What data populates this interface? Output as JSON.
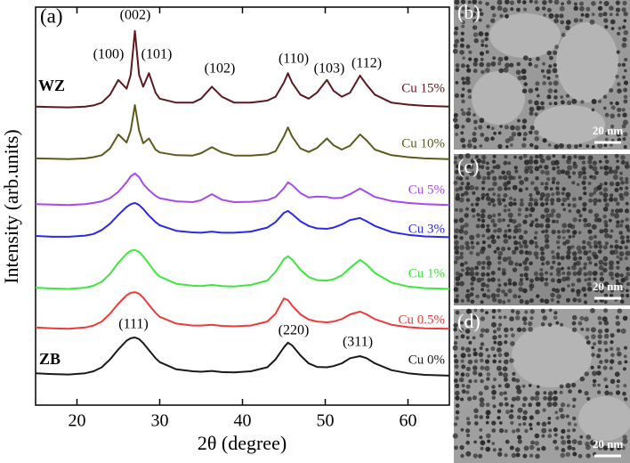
{
  "chart_data": {
    "type": "line",
    "panel_label": "(a)",
    "xlabel": "2θ (degree)",
    "ylabel": "Intensity (arb.units)",
    "xlim": [
      15,
      65
    ],
    "xticks": [
      20,
      30,
      40,
      50,
      60
    ],
    "ylim": [
      0,
      100
    ],
    "x": [
      15,
      17,
      19,
      21,
      22,
      23,
      24,
      25,
      26,
      26.5,
      27,
      27.5,
      28,
      28.7,
      29.5,
      30,
      32,
      34,
      35,
      36.3,
      37.5,
      39,
      41,
      43,
      44,
      45,
      45.5,
      46,
      47,
      48,
      49,
      50.2,
      51,
      52,
      53,
      54.2,
      55,
      56,
      58,
      60,
      62,
      65
    ],
    "series": [
      {
        "name": "Cu 15%",
        "color": "#5c1a1f",
        "values": [
          75,
          74.9,
          74.8,
          75,
          75.3,
          76,
          78,
          81.7,
          79.5,
          83,
          94,
          83,
          80,
          83.4,
          78.5,
          77,
          76,
          76,
          77,
          80,
          77.5,
          76,
          76,
          76.5,
          77.5,
          81,
          83.4,
          81,
          78,
          77,
          78.5,
          81.7,
          79,
          77.5,
          78.5,
          82.8,
          80.5,
          78,
          76,
          75.5,
          75.2,
          75
        ]
      },
      {
        "name": "Cu 10%",
        "color": "#5b5b1e",
        "values": [
          62,
          61.9,
          61.8,
          62,
          62.3,
          62.8,
          64.5,
          68,
          66,
          69,
          75.4,
          69,
          65.8,
          67,
          64.2,
          63.5,
          62.8,
          62.7,
          63.3,
          64.8,
          63.5,
          62.7,
          62.7,
          63,
          63.8,
          67.5,
          69.8,
          67.5,
          64.5,
          63.6,
          64.6,
          67,
          65.3,
          64.2,
          65.2,
          68,
          66.5,
          64.2,
          62.8,
          62.3,
          62,
          61.8
        ]
      },
      {
        "name": "Cu 5%",
        "color": "#a54af0",
        "values": [
          50.5,
          50.4,
          50.3,
          50.5,
          50.8,
          51.2,
          52,
          53.6,
          56,
          57.5,
          58.2,
          57.3,
          55.6,
          54,
          52.6,
          52,
          51.2,
          51,
          51.5,
          53,
          51.6,
          51,
          51.1,
          51.5,
          52.3,
          54.5,
          56,
          55.3,
          53.3,
          52.2,
          52.4,
          52.3,
          52,
          52.1,
          53,
          54.4,
          53.5,
          52.3,
          51.3,
          50.8,
          50.5,
          50.3
        ]
      },
      {
        "name": "Cu 3%",
        "color": "#2a2ae8",
        "values": [
          42.5,
          42.3,
          42.3,
          42.6,
          43,
          44,
          45.6,
          47.8,
          49.8,
          50.5,
          50.8,
          50.3,
          49.3,
          47.6,
          46,
          45.2,
          43.8,
          43.4,
          43.3,
          43.6,
          43.3,
          43.3,
          43.6,
          44.6,
          46,
          48.3,
          48.8,
          48,
          46.2,
          45,
          44.4,
          44.3,
          44.6,
          45.4,
          46.5,
          47,
          46.2,
          45,
          43.5,
          42.8,
          42.4,
          42.2
        ]
      },
      {
        "name": "Cu 1%",
        "color": "#3ee63e",
        "values": [
          29.5,
          29.3,
          29.2,
          29.5,
          30,
          31,
          33,
          35.8,
          38,
          38.8,
          39,
          38.5,
          37.4,
          35.5,
          33.3,
          32.3,
          30.5,
          30,
          29.9,
          30.2,
          29.9,
          29.8,
          30.2,
          31.3,
          33.5,
          36.7,
          37.4,
          36.6,
          34,
          32.2,
          31.4,
          31.3,
          31.6,
          32.6,
          34.5,
          36.5,
          35.3,
          33.2,
          30.8,
          29.8,
          29.4,
          29.2
        ]
      },
      {
        "name": "Cu 0.5%",
        "color": "#f03a3a",
        "values": [
          19.5,
          19.3,
          19.2,
          19.5,
          20,
          21,
          23,
          25.5,
          27.6,
          28.2,
          28.4,
          28,
          27,
          25.2,
          23.2,
          22.2,
          20.5,
          20,
          20,
          20.2,
          19.9,
          19.8,
          20,
          21,
          23,
          26.8,
          26.4,
          25,
          22.8,
          21.5,
          21,
          20.8,
          21,
          21.6,
          22.8,
          23.5,
          22.8,
          21.6,
          20.2,
          19.6,
          19.3,
          19.2
        ]
      },
      {
        "name": "Cu 0%",
        "color": "#1a1a1a",
        "values": [
          8,
          7.8,
          7.7,
          8,
          8.5,
          9.5,
          11.5,
          14,
          16.2,
          16.8,
          17,
          16.6,
          15.6,
          13.8,
          11.8,
          10.8,
          9,
          8.5,
          8.4,
          8.6,
          8.3,
          8.2,
          8.5,
          9.5,
          11.5,
          14.5,
          15.7,
          15,
          12.5,
          10.5,
          9.6,
          9.5,
          9.8,
          10.5,
          11.8,
          12.3,
          11.8,
          10.5,
          8.8,
          8,
          7.6,
          7.4
        ]
      }
    ],
    "annotations": [
      "(002)",
      "(100)",
      "(101)",
      "(102)",
      "(110)",
      "(103)",
      "(112)",
      "WZ",
      "ZB",
      "(111)",
      "(220)",
      "(311)"
    ]
  },
  "panels": [
    {
      "label": "(b)",
      "scale": "20 nm"
    },
    {
      "label": "(c)",
      "scale": "20 nm"
    },
    {
      "label": "(d)",
      "scale": "20 nm"
    }
  ]
}
